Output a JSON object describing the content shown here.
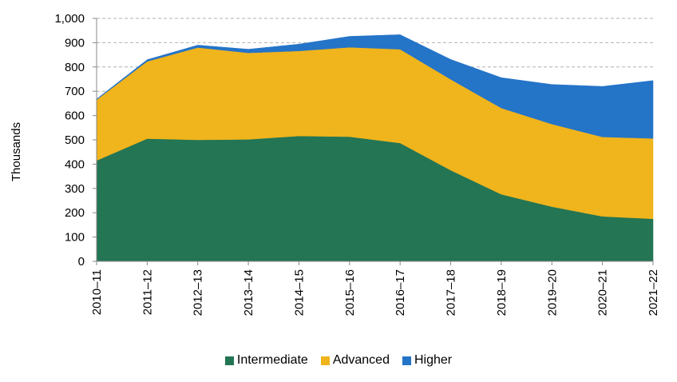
{
  "chart_data": {
    "type": "area",
    "stacked": true,
    "ylabel": "Thousands",
    "ylim": [
      0,
      1000
    ],
    "yticks": [
      "0",
      "100",
      "200",
      "300",
      "400",
      "500",
      "600",
      "700",
      "800",
      "900",
      "1,000"
    ],
    "categories": [
      "2010–11",
      "2011–12",
      "2012–13",
      "2013–14",
      "2014–15",
      "2015–16",
      "2016–17",
      "2017–18",
      "2018–19",
      "2019–20",
      "2020–21",
      "2021–22"
    ],
    "grid": "horizontal-dashed",
    "legend_position": "bottom",
    "series": [
      {
        "name": "Intermediate",
        "color": "#237554",
        "values": [
          415,
          505,
          500,
          502,
          516,
          513,
          487,
          375,
          276,
          225,
          185,
          175
        ]
      },
      {
        "name": "Advanced",
        "color": "#f0b41c",
        "values": [
          250,
          318,
          380,
          356,
          350,
          368,
          386,
          374,
          355,
          340,
          327,
          331
        ]
      },
      {
        "name": "Higher",
        "color": "#2474c8",
        "values": [
          3,
          7,
          10,
          15,
          28,
          45,
          60,
          82,
          125,
          163,
          208,
          238
        ]
      }
    ]
  }
}
